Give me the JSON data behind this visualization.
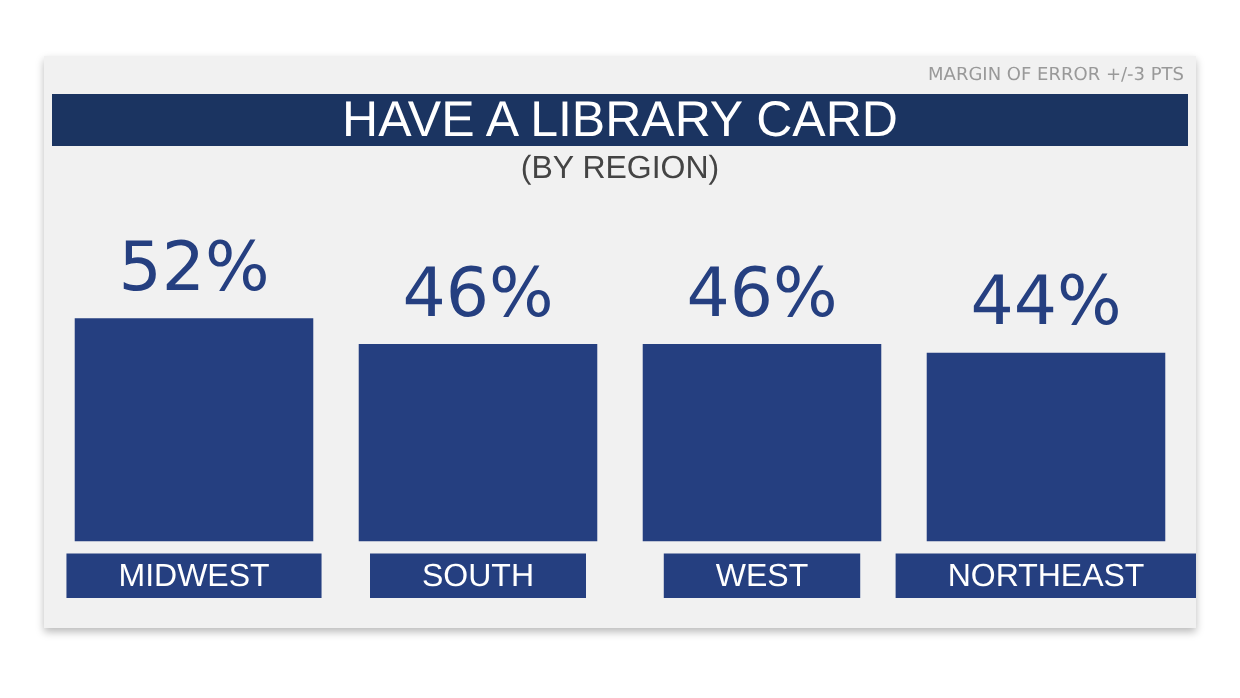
{
  "chart_data": {
    "type": "bar",
    "title": "HAVE A LIBRARY CARD",
    "subtitle": "(BY REGION)",
    "annotations": [
      "MARGIN OF ERROR +/-3 PTS"
    ],
    "categories": [
      "MIDWEST",
      "SOUTH",
      "WEST",
      "NORTHEAST"
    ],
    "values": [
      52,
      46,
      46,
      44
    ],
    "color": "#253f80",
    "value_labels": [
      "52%",
      "46%",
      "46%",
      "44%"
    ]
  }
}
